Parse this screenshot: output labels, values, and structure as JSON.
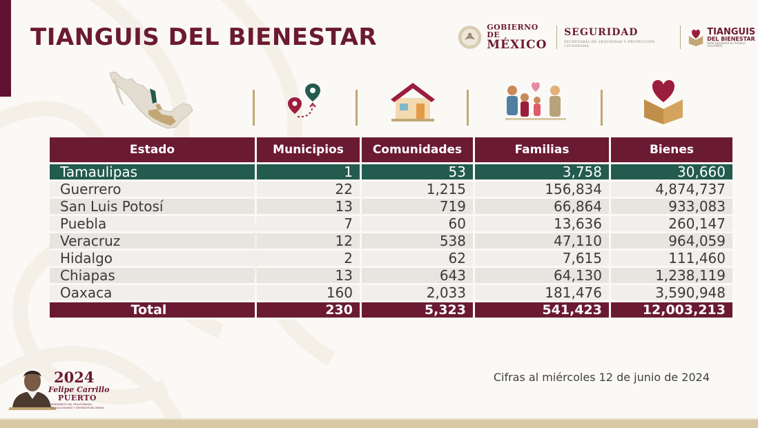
{
  "header": {
    "title": "TIANGUIS DEL BIENESTAR"
  },
  "logos": {
    "gobierno_line1": "GOBIERNO DE",
    "gobierno_line2": "MÉXICO",
    "seguridad": "SEGURIDAD",
    "seguridad_sub": "SECRETARÍA DE SEGURIDAD Y PROTECCIÓN CIUDADANA",
    "tianguis_line1": "TIANGUIS",
    "tianguis_line2": "DEL BIENESTAR",
    "tianguis_sub": "PARA RESOLVER EL PUEBLO SALGAMOS"
  },
  "icons": [
    "mexico-map-icon",
    "route-pins-icon",
    "house-icon",
    "family-icon",
    "heart-box-icon"
  ],
  "table": {
    "headers": [
      "Estado",
      "Municipios",
      "Comunidades",
      "Familias",
      "Bienes"
    ],
    "rows": [
      {
        "estado": "Tamaulipas",
        "municipios": "1",
        "comunidades": "53",
        "familias": "3,758",
        "bienes": "30,660"
      },
      {
        "estado": "Guerrero",
        "municipios": "22",
        "comunidades": "1,215",
        "familias": "156,834",
        "bienes": "4,874,737"
      },
      {
        "estado": "San Luis Potosí",
        "municipios": "13",
        "comunidades": "719",
        "familias": "66,864",
        "bienes": "933,083"
      },
      {
        "estado": "Puebla",
        "municipios": "7",
        "comunidades": "60",
        "familias": "13,636",
        "bienes": "260,147"
      },
      {
        "estado": "Veracruz",
        "municipios": "12",
        "comunidades": "538",
        "familias": "47,110",
        "bienes": "964,059"
      },
      {
        "estado": "Hidalgo",
        "municipios": "2",
        "comunidades": "62",
        "familias": "7,615",
        "bienes": "111,460"
      },
      {
        "estado": "Chiapas",
        "municipios": "13",
        "comunidades": "643",
        "familias": "64,130",
        "bienes": "1,238,119"
      },
      {
        "estado": "Oaxaca",
        "municipios": "160",
        "comunidades": "2,033",
        "familias": "181,476",
        "bienes": "3,590,948"
      }
    ],
    "total": {
      "estado": "Total",
      "municipios": "230",
      "comunidades": "5,323",
      "familias": "541,423",
      "bienes": "12,003,213"
    }
  },
  "footer": {
    "note": "Cifras al miércoles 12 de junio de 2024",
    "year": "2024",
    "name_line1": "Felipe Carrillo",
    "name_line2": "PUERTO",
    "small_text": "BENEMÉRITO DEL PROLETARIADO, REVOLUCIONARIO Y DEFENSOR DEL MAYAB"
  },
  "colors": {
    "primary": "#6b1a33",
    "highlight": "#235b4e",
    "accent": "#c2a775"
  }
}
